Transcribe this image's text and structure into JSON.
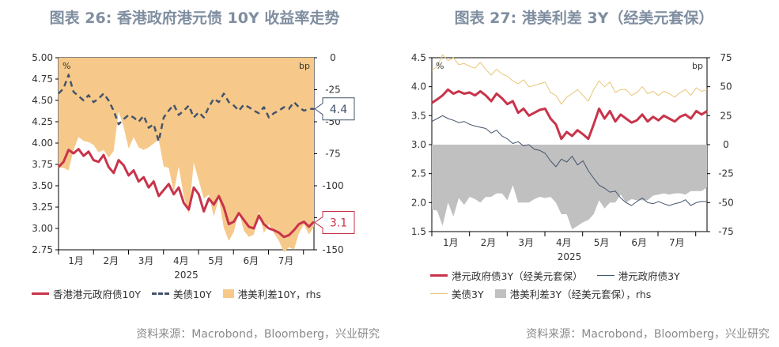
{
  "chart_data": [
    {
      "type": "line",
      "title": "图表 26: 香港政府港元债 10Y 收益率走势",
      "source": "资料来源：Macrobond，Bloomberg，兴业研究",
      "left_axis_unit": "%",
      "right_axis_unit": "bp",
      "year_label": "2025",
      "x_ticks": [
        "1月",
        "2月",
        "3月",
        "4月",
        "5月",
        "6月",
        "7月"
      ],
      "y_left": {
        "range": [
          2.75,
          5.0
        ],
        "ticks": [
          "5.00",
          "4.75",
          "4.50",
          "4.25",
          "4.00",
          "3.75",
          "3.50",
          "3.25",
          "3.00",
          "2.75"
        ]
      },
      "y_right": {
        "range": [
          -150,
          0
        ],
        "ticks": [
          "0",
          "-25",
          "-50",
          "-75",
          "-100",
          "-125",
          "-150"
        ]
      },
      "series": [
        {
          "name": "香港港元政府债10Y",
          "axis": "left",
          "color": "#c8344a",
          "values": [
            3.72,
            3.78,
            3.92,
            3.88,
            3.93,
            3.85,
            3.9,
            3.8,
            3.78,
            3.86,
            3.72,
            3.65,
            3.8,
            3.74,
            3.62,
            3.68,
            3.55,
            3.6,
            3.48,
            3.55,
            3.38,
            3.45,
            3.52,
            3.4,
            3.48,
            3.3,
            3.22,
            3.48,
            3.4,
            3.2,
            3.35,
            3.28,
            3.38,
            3.25,
            3.05,
            3.08,
            3.18,
            3.1,
            3.02,
            3.0,
            3.15,
            3.05,
            3.0,
            2.98,
            2.95,
            2.9,
            2.92,
            2.98,
            3.05,
            3.08,
            3.02,
            3.08
          ]
        },
        {
          "name": "美债10Y",
          "axis": "left",
          "color": "#44546a",
          "dashed": true,
          "values": [
            4.58,
            4.64,
            4.8,
            4.6,
            4.55,
            4.5,
            4.56,
            4.48,
            4.52,
            4.58,
            4.5,
            4.38,
            4.22,
            4.28,
            4.33,
            4.3,
            4.25,
            4.32,
            4.18,
            4.22,
            4.02,
            4.3,
            4.38,
            4.45,
            4.33,
            4.38,
            4.44,
            4.3,
            4.36,
            4.3,
            4.42,
            4.52,
            4.48,
            4.58,
            4.48,
            4.44,
            4.38,
            4.45,
            4.42,
            4.38,
            4.35,
            4.42,
            4.3,
            4.35,
            4.38,
            4.42,
            4.4,
            4.48,
            4.42,
            4.38,
            4.4,
            4.4
          ]
        },
        {
          "name": "港美利差10Y，rhs",
          "axis": "right",
          "color": "#f6c98a",
          "kind": "area",
          "values": [
            -86,
            -86,
            -88,
            -72,
            -62,
            -65,
            -66,
            -68,
            -74,
            -72,
            -78,
            -73,
            -42,
            -54,
            -71,
            -62,
            -70,
            -72,
            -70,
            -67,
            -64,
            -85,
            -86,
            -105,
            -85,
            -108,
            -122,
            -82,
            -96,
            -110,
            -107,
            -124,
            -110,
            -133,
            -143,
            -136,
            -120,
            -135,
            -140,
            -138,
            -120,
            -137,
            -130,
            -137,
            -143,
            -152,
            -148,
            -150,
            -137,
            -130,
            -138,
            -132
          ]
        }
      ],
      "callouts": {
        "us10y": "4.4",
        "hk10y": "3.1"
      }
    },
    {
      "type": "line",
      "title": "图表 27: 港美利差 3Y（经美元套保）",
      "source": "资料来源：Macrobond，Bloomberg，兴业研究",
      "left_axis_unit": "%",
      "right_axis_unit": "bp",
      "year_label": "2025",
      "x_ticks": [
        "1月",
        "2月",
        "3月",
        "4月",
        "5月",
        "6月",
        "7月"
      ],
      "y_left": {
        "range": [
          1.5,
          4.5
        ],
        "ticks": [
          "4.5",
          "4.0",
          "3.5",
          "3.0",
          "2.5",
          "2.0",
          "1.5"
        ]
      },
      "y_right": {
        "range": [
          -75,
          75
        ],
        "ticks": [
          "75",
          "50",
          "25",
          "0",
          "-25",
          "-50",
          "-75"
        ]
      },
      "series": [
        {
          "name": "港元政府债3Y（经美元套保）",
          "axis": "left",
          "color": "#c8344a",
          "values": [
            3.72,
            3.78,
            3.85,
            3.95,
            3.88,
            3.92,
            3.88,
            3.9,
            3.85,
            3.92,
            3.85,
            3.75,
            3.88,
            3.8,
            3.7,
            3.75,
            3.55,
            3.62,
            3.5,
            3.55,
            3.6,
            3.62,
            3.45,
            3.35,
            3.1,
            3.22,
            3.15,
            3.25,
            3.18,
            3.1,
            3.35,
            3.62,
            3.45,
            3.58,
            3.4,
            3.52,
            3.45,
            3.38,
            3.42,
            3.52,
            3.4,
            3.48,
            3.42,
            3.5,
            3.45,
            3.4,
            3.48,
            3.52,
            3.45,
            3.58,
            3.52,
            3.58
          ]
        },
        {
          "name": "港元政府债3Y",
          "axis": "left",
          "color": "#44546a",
          "values": [
            3.4,
            3.45,
            3.5,
            3.45,
            3.42,
            3.38,
            3.4,
            3.35,
            3.32,
            3.3,
            3.28,
            3.2,
            3.25,
            3.15,
            3.1,
            3.02,
            3.05,
            2.98,
            3.0,
            2.92,
            2.9,
            2.85,
            2.72,
            2.62,
            2.75,
            2.7,
            2.8,
            2.65,
            2.72,
            2.55,
            2.42,
            2.3,
            2.25,
            2.18,
            2.2,
            2.08,
            2.0,
            1.95,
            2.02,
            2.08,
            2.0,
            1.98,
            2.02,
            1.98,
            1.95,
            1.98,
            2.0,
            2.05,
            1.95,
            2.0,
            2.02,
            2.02
          ]
        },
        {
          "name": "美债3Y",
          "axis": "left",
          "color": "#e8c677",
          "values": [
            4.28,
            4.35,
            4.55,
            4.45,
            4.5,
            4.38,
            4.4,
            4.35,
            4.32,
            4.42,
            4.3,
            4.2,
            4.3,
            4.22,
            4.18,
            4.1,
            4.05,
            4.12,
            4.0,
            4.02,
            4.05,
            4.08,
            3.9,
            3.85,
            3.7,
            3.82,
            3.88,
            3.95,
            3.85,
            3.75,
            3.95,
            4.1,
            4.0,
            4.08,
            3.9,
            3.95,
            3.95,
            3.85,
            3.9,
            4.0,
            3.88,
            3.92,
            3.85,
            3.92,
            3.88,
            3.82,
            3.9,
            3.95,
            3.85,
            3.98,
            3.92,
            3.95
          ]
        },
        {
          "name": "港美利差3Y（经美元套保），rhs",
          "axis": "right",
          "color": "#c0c0c0",
          "kind": "area",
          "values": [
            -56,
            -57,
            -70,
            -50,
            -62,
            -46,
            -52,
            -45,
            -47,
            -50,
            -45,
            -45,
            -42,
            -42,
            -48,
            -35,
            -50,
            -50,
            -50,
            -47,
            -45,
            -46,
            -45,
            -50,
            -60,
            -60,
            -73,
            -70,
            -67,
            -65,
            -60,
            -48,
            -55,
            -50,
            -50,
            -43,
            -50,
            -47,
            -48,
            -48,
            -48,
            -44,
            -43,
            -42,
            -43,
            -42,
            -42,
            -43,
            -40,
            -40,
            -40,
            -37
          ]
        }
      ]
    }
  ]
}
